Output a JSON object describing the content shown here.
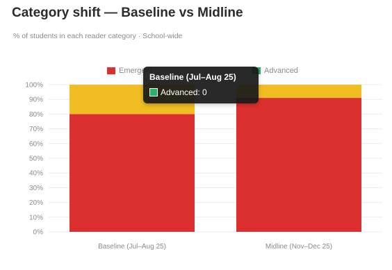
{
  "title": "Category shift — Baseline vs Midline",
  "subtitle": "% of students in each reader category · School-wide",
  "colors": {
    "emergent": "#dc2f2f",
    "beginner": "#f0bd22",
    "advanced": "#27b36b",
    "grid": "#ececec",
    "tooltip_bg": "#191919"
  },
  "chart_data": {
    "type": "bar",
    "stacked": true,
    "categories": [
      "Baseline (Jul–Aug 25)",
      "Midline (Nov–Dec 25)"
    ],
    "series": [
      {
        "name": "Emergent",
        "values": [
          80,
          91
        ]
      },
      {
        "name": "",
        "values": [
          20,
          9
        ]
      },
      {
        "name": "Advanced",
        "values": [
          0,
          0
        ]
      }
    ],
    "ylim": [
      0,
      100
    ],
    "yticks": [
      "0%",
      "10%",
      "20%",
      "30%",
      "40%",
      "50%",
      "60%",
      "70%",
      "80%",
      "90%",
      "100%"
    ],
    "grid": true,
    "legend": "top-center"
  },
  "legend": {
    "items": [
      {
        "label": "Emergent"
      },
      {
        "label": "Advanced"
      }
    ]
  },
  "tooltip": {
    "title": "Baseline (Jul–Aug 25)",
    "row_label": "Advanced: 0"
  }
}
